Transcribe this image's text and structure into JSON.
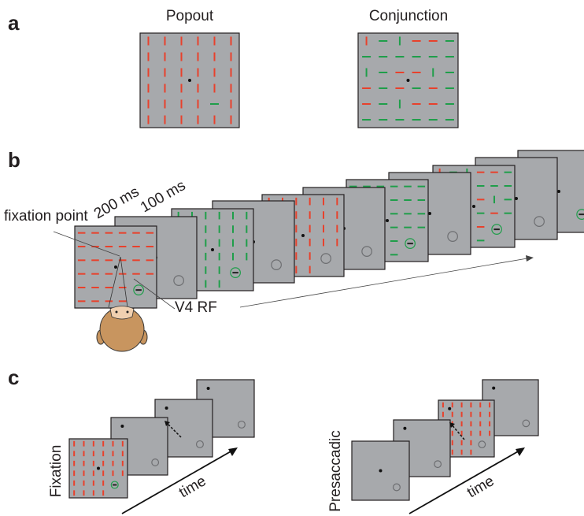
{
  "panel_a": {
    "label": "a",
    "popout_title": "Popout",
    "conjunction_title": "Conjunction"
  },
  "panel_b": {
    "label": "b",
    "duration_1": "200 ms",
    "duration_2": "100 ms",
    "fixation_label": "fixation point",
    "rf_label": "V4 RF"
  },
  "panel_c": {
    "label": "c",
    "fixation_title": "Fixation",
    "presaccadic_title": "Presaccadic",
    "time_1": "time",
    "time_2": "time"
  }
}
